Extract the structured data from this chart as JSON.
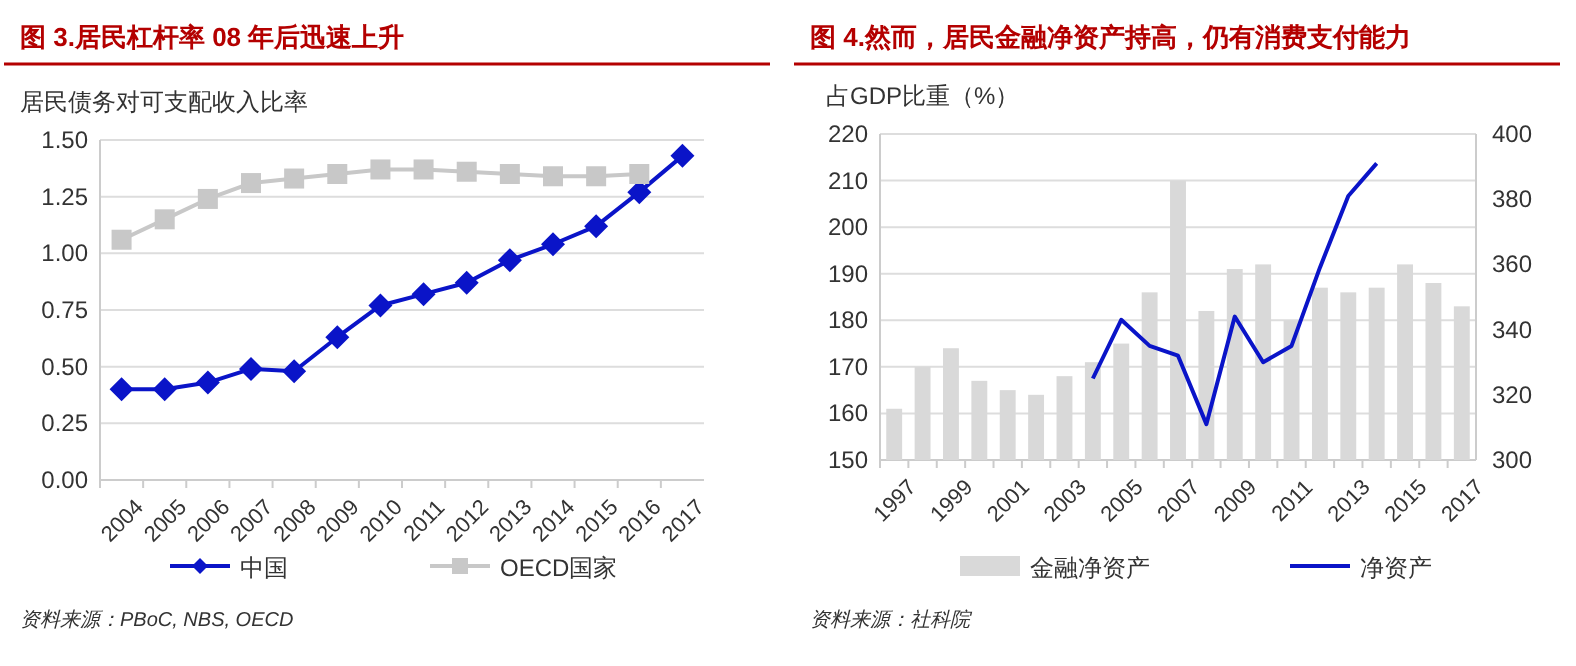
{
  "chart_data": [
    {
      "type": "line",
      "title": "图 3.居民杠杆率 08 年后迅速上升",
      "ylabel": "居民债务对可支配收入比率",
      "categories": [
        "2004",
        "2005",
        "2006",
        "2007",
        "2008",
        "2009",
        "2010",
        "2011",
        "2012",
        "2013",
        "2014",
        "2015",
        "2016",
        "2017"
      ],
      "series": [
        {
          "name": "中国",
          "color": "#0a14c8",
          "marker": "diamond",
          "values": [
            0.4,
            0.4,
            0.43,
            0.49,
            0.48,
            0.63,
            0.77,
            0.82,
            0.87,
            0.97,
            1.04,
            1.12,
            1.27,
            1.43
          ]
        },
        {
          "name": "OECD国家",
          "color": "#c8c8c8",
          "marker": "square",
          "values": [
            1.06,
            1.15,
            1.24,
            1.31,
            1.33,
            1.35,
            1.37,
            1.37,
            1.36,
            1.35,
            1.34,
            1.34,
            1.35,
            null
          ]
        }
      ],
      "ylim": [
        0,
        1.5
      ],
      "yticks": [
        {
          "value": 0,
          "label": "0.00"
        },
        {
          "value": 0.25,
          "label": "0.25"
        },
        {
          "value": 0.5,
          "label": "0.50"
        },
        {
          "value": 0.75,
          "label": "0.75"
        },
        {
          "value": 1,
          "label": "1.00"
        },
        {
          "value": 1.25,
          "label": "1.25"
        },
        {
          "value": 1.5,
          "label": "1.50"
        }
      ],
      "grid": "y",
      "legend": "bottom",
      "annotations": [
        "资料来源：PBoC, NBS, OECD"
      ]
    },
    {
      "type": "bar",
      "title": "图 4.然而，居民金融净资产持高，仍有消费支付能力",
      "ylabel": "占GDP比重（%）",
      "categories": [
        "1997",
        null,
        "1999",
        null,
        "2001",
        null,
        "2003",
        null,
        "2005",
        null,
        "2007",
        null,
        "2009",
        null,
        "2011",
        null,
        "2013",
        null,
        "2015",
        null,
        "2017"
      ],
      "series": [
        {
          "name": "金融净资产",
          "color": "#d9d9d9",
          "values": [
            161,
            170,
            174,
            167,
            165,
            164,
            168,
            171,
            175,
            186,
            210,
            182,
            191,
            192,
            180,
            187,
            186,
            187,
            192,
            188,
            183
          ]
        },
        {
          "name": "净资产",
          "type": "line",
          "axis": "y2",
          "color": "#0a14c8",
          "values": [
            null,
            null,
            null,
            null,
            null,
            null,
            null,
            325,
            343,
            335,
            332,
            311,
            344,
            330,
            335,
            359,
            381,
            391,
            null,
            null,
            null
          ]
        }
      ],
      "ylim": [
        150,
        220
      ],
      "yticks": [
        150,
        160,
        170,
        180,
        190,
        200,
        210,
        220
      ],
      "y2lim": [
        300,
        400
      ],
      "y2ticks": [
        300,
        320,
        340,
        360,
        380,
        400
      ],
      "grid": "y",
      "legend": "bottom",
      "annotations": [
        "资料来源：社科院"
      ]
    }
  ]
}
